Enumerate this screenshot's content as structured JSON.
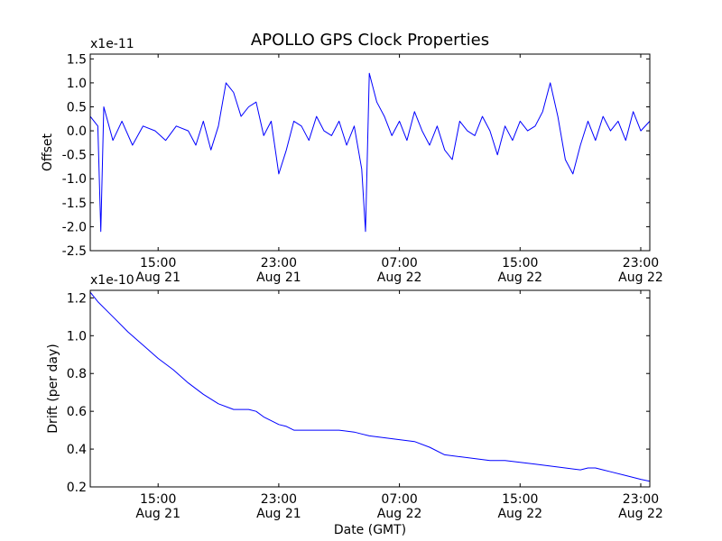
{
  "figure": {
    "title": "APOLLO GPS Clock Properties",
    "xlabel": "Date (GMT)"
  },
  "chart_data": [
    {
      "type": "line",
      "ylabel": "Offset",
      "y_multiplier": "x1e-11",
      "ylim": [
        -2.5,
        1.6
      ],
      "yticks": [
        -2.5,
        -2.0,
        -1.5,
        -1.0,
        -0.5,
        0.0,
        0.5,
        1.0,
        1.5
      ],
      "ytick_labels": [
        "-2.5",
        "-2.0",
        "-1.5",
        "-1.0",
        "-0.5",
        "0.0",
        "0.5",
        "1.0",
        "1.5"
      ],
      "x_hours_range": [
        10.5,
        47.6
      ],
      "xticks": [
        {
          "hour": 15,
          "time": "15:00",
          "date": "Aug 21"
        },
        {
          "hour": 23,
          "time": "23:00",
          "date": "Aug 21"
        },
        {
          "hour": 31,
          "time": "07:00",
          "date": "Aug 22"
        },
        {
          "hour": 39,
          "time": "15:00",
          "date": "Aug 22"
        },
        {
          "hour": 47,
          "time": "23:00",
          "date": "Aug 22"
        }
      ],
      "color": "#0000ff",
      "series": [
        {
          "x_hours": [
            10.5,
            11.0,
            11.2,
            11.4,
            12.0,
            12.6,
            13.3,
            14.0,
            14.8,
            15.5,
            16.2,
            17.0,
            17.5,
            18.0,
            18.5,
            19.0,
            19.5,
            20.0,
            20.5,
            21.0,
            21.5,
            22.0,
            22.5,
            23.0,
            23.5,
            24.0,
            24.5,
            25.0,
            25.5,
            26.0,
            26.5,
            27.0,
            27.5,
            28.0,
            28.5,
            28.75,
            29.0,
            29.5,
            30.0,
            30.5,
            31.0,
            31.5,
            32.0,
            32.5,
            33.0,
            33.5,
            34.0,
            34.5,
            35.0,
            35.5,
            36.0,
            36.5,
            37.0,
            37.5,
            38.0,
            38.5,
            39.0,
            39.5,
            40.0,
            40.5,
            41.0,
            41.5,
            42.0,
            42.5,
            43.0,
            43.5,
            44.0,
            44.5,
            45.0,
            45.5,
            46.0,
            46.5,
            47.0,
            47.6
          ],
          "y": [
            0.3,
            0.1,
            -2.1,
            0.5,
            -0.2,
            0.2,
            -0.3,
            0.1,
            0.0,
            -0.2,
            0.1,
            0.0,
            -0.3,
            0.2,
            -0.4,
            0.1,
            1.0,
            0.8,
            0.3,
            0.5,
            0.6,
            -0.1,
            0.2,
            -0.9,
            -0.4,
            0.2,
            0.1,
            -0.2,
            0.3,
            0.0,
            -0.1,
            0.2,
            -0.3,
            0.1,
            -0.8,
            -2.1,
            1.2,
            0.6,
            0.3,
            -0.1,
            0.2,
            -0.2,
            0.4,
            0.0,
            -0.3,
            0.1,
            -0.4,
            -0.6,
            0.2,
            0.0,
            -0.1,
            0.3,
            0.0,
            -0.5,
            0.1,
            -0.2,
            0.2,
            0.0,
            0.1,
            0.4,
            1.0,
            0.3,
            -0.6,
            -0.9,
            -0.3,
            0.2,
            -0.2,
            0.3,
            0.0,
            0.2,
            -0.2,
            0.4,
            0.0,
            0.2
          ]
        }
      ]
    },
    {
      "type": "line",
      "ylabel": "Drift (per day)",
      "y_multiplier": "x1e-10",
      "ylim": [
        0.2,
        1.24
      ],
      "yticks": [
        0.2,
        0.4,
        0.6,
        0.8,
        1.0,
        1.2
      ],
      "ytick_labels": [
        "0.2",
        "0.4",
        "0.6",
        "0.8",
        "1.0",
        "1.2"
      ],
      "x_hours_range": [
        10.5,
        47.6
      ],
      "xticks": [
        {
          "hour": 15,
          "time": "15:00",
          "date": "Aug 21"
        },
        {
          "hour": 23,
          "time": "23:00",
          "date": "Aug 21"
        },
        {
          "hour": 31,
          "time": "07:00",
          "date": "Aug 22"
        },
        {
          "hour": 39,
          "time": "15:00",
          "date": "Aug 22"
        },
        {
          "hour": 47,
          "time": "23:00",
          "date": "Aug 22"
        }
      ],
      "color": "#0000ff",
      "series": [
        {
          "x_hours": [
            10.5,
            11.0,
            12.0,
            13.0,
            14.0,
            15.0,
            16.0,
            17.0,
            18.0,
            19.0,
            20.0,
            21.0,
            21.5,
            22.0,
            22.5,
            23.0,
            23.5,
            24.0,
            25.0,
            26.0,
            27.0,
            28.0,
            28.5,
            29.0,
            30.0,
            31.0,
            32.0,
            33.0,
            34.0,
            35.0,
            36.0,
            37.0,
            38.0,
            39.0,
            40.0,
            41.0,
            42.0,
            43.0,
            43.5,
            44.0,
            44.5,
            45.0,
            46.0,
            47.0,
            47.6
          ],
          "y": [
            1.23,
            1.18,
            1.1,
            1.02,
            0.95,
            0.88,
            0.82,
            0.75,
            0.69,
            0.64,
            0.61,
            0.61,
            0.6,
            0.57,
            0.55,
            0.53,
            0.52,
            0.5,
            0.5,
            0.5,
            0.5,
            0.49,
            0.48,
            0.47,
            0.46,
            0.45,
            0.44,
            0.41,
            0.37,
            0.36,
            0.35,
            0.34,
            0.34,
            0.33,
            0.32,
            0.31,
            0.3,
            0.29,
            0.3,
            0.3,
            0.29,
            0.28,
            0.26,
            0.24,
            0.23
          ]
        }
      ]
    }
  ]
}
